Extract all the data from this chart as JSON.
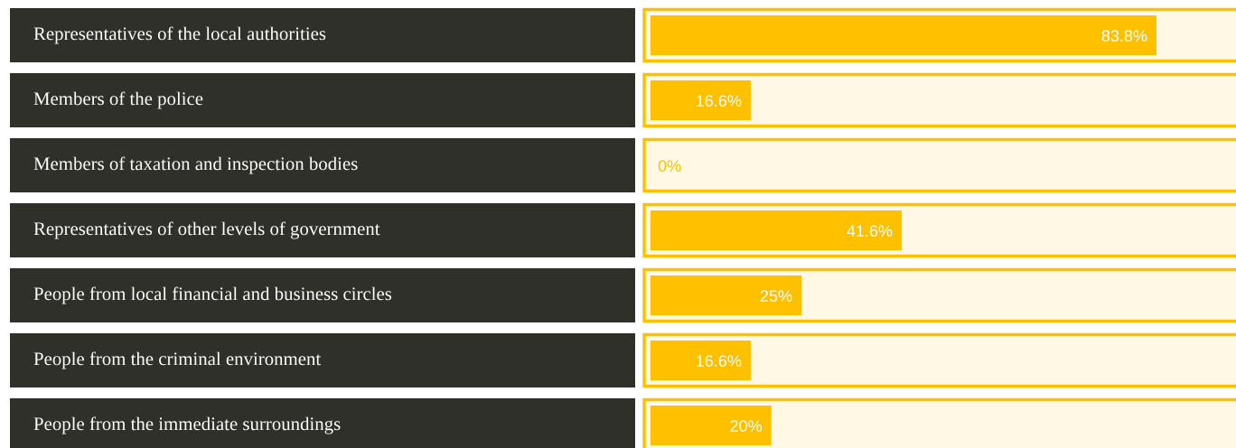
{
  "chart_data": {
    "type": "bar",
    "orientation": "horizontal",
    "categories": [
      "Representatives of the local authorities",
      "Members of the police",
      "Members of taxation and inspection bodies",
      "Representatives of other levels of government",
      "People from local financial and business circles",
      "People from the criminal environment",
      "People from the immediate surroundings"
    ],
    "values": [
      83.8,
      16.6,
      0,
      41.6,
      25,
      16.6,
      20
    ],
    "value_labels": [
      "83.8%",
      "16.6%",
      "0%",
      "41.6%",
      "25%",
      "16.6%",
      "20%"
    ],
    "color": "#ffc000"
  }
}
